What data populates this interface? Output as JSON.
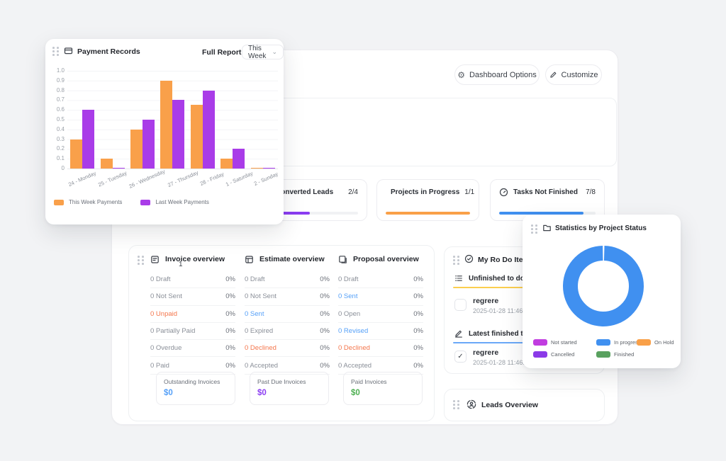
{
  "colors": {
    "orange": "#f9a04a",
    "purple_bar": "#a93ce8",
    "violet": "#8b3df2",
    "blue": "#4090f0",
    "green": "#59a15f",
    "magenta": "#c13de0",
    "red_text": "#f4764c",
    "blue_text": "#55a0f8",
    "yellow_underline": "#fbce4f",
    "blue_underline": "#6aa8f8"
  },
  "payment_card": {
    "title": "Payment Records",
    "full_report_label": "Full Report",
    "range_selector_value": "This Week",
    "legend": [
      {
        "label": "This Week Payments",
        "color": "#f9a04a"
      },
      {
        "label": "Last Week Payments",
        "color": "#a93ce8"
      }
    ]
  },
  "chart_data": [
    {
      "type": "bar",
      "title": "Payment Records",
      "categories": [
        "24 - Monday",
        "25 - Tuesday",
        "26 - Wednesday",
        "27 - Thursday",
        "28 - Friday",
        "1 - Saturday",
        "2 - Sunday"
      ],
      "series": [
        {
          "name": "This Week Payments",
          "color": "#f9a04a",
          "values": [
            0.3,
            0.1,
            0.4,
            0.9,
            0.65,
            0.1,
            0.01
          ]
        },
        {
          "name": "Last Week Payments",
          "color": "#a93ce8",
          "values": [
            0.6,
            0.01,
            0.5,
            0.7,
            0.8,
            0.2,
            0.01
          ]
        }
      ],
      "ylim": [
        0,
        1.0
      ],
      "yticks": [
        0,
        0.1,
        0.2,
        0.3,
        0.4,
        0.5,
        0.6,
        0.7,
        0.8,
        0.9,
        1.0
      ],
      "grid": true,
      "legend_position": "bottom"
    },
    {
      "type": "pie",
      "title": "Statistics by Project Status",
      "labels": [
        "Not started",
        "In progress",
        "On Hold",
        "Cancelled",
        "Finished"
      ],
      "values": [
        0,
        100,
        0,
        0,
        0
      ],
      "colors": [
        "#c13de0",
        "#4090f0",
        "#f9a048",
        "#8b3ae8",
        "#59a15f"
      ],
      "donut": true,
      "legend_position": "bottom"
    }
  ],
  "toolbar": {
    "dashboard_options_label": "Dashboard Options",
    "customize_label": "Customize"
  },
  "stat_cards": [
    {
      "label": "Converted Leads",
      "value": "2/4",
      "progress": "50%",
      "color": "#8b3df2"
    },
    {
      "label": "Projects in Progress",
      "value": "1/1",
      "progress": "100%",
      "color": "#f9a048"
    },
    {
      "label": "Tasks Not Finished",
      "value": "7/8",
      "progress": "87.5%",
      "color": "#4090f0"
    }
  ],
  "overview": {
    "floating_char": "1",
    "columns": [
      {
        "title": "Invoice overview",
        "rows": [
          {
            "label": "0 Draft",
            "value": "0%"
          },
          {
            "label": "0 Not Sent",
            "value": "0%"
          },
          {
            "label": "0 Unpaid",
            "value": "0%",
            "color": "red"
          },
          {
            "label": "0 Partially Paid",
            "value": "0%"
          },
          {
            "label": "0 Overdue",
            "value": "0%"
          },
          {
            "label": "0 Paid",
            "value": "0%"
          }
        ]
      },
      {
        "title": "Estimate overview",
        "rows": [
          {
            "label": "0 Draft",
            "value": "0%"
          },
          {
            "label": "0 Not Sent",
            "value": "0%"
          },
          {
            "label": "0 Sent",
            "value": "0%",
            "color": "blue"
          },
          {
            "label": "0 Expired",
            "value": "0%"
          },
          {
            "label": "0 Declined",
            "value": "0%",
            "color": "red"
          },
          {
            "label": "0 Accepted",
            "value": "0%"
          }
        ]
      },
      {
        "title": "Proposal overview",
        "rows": [
          {
            "label": "0 Draft",
            "value": "0%"
          },
          {
            "label": "0 Sent",
            "value": "0%",
            "color": "blue"
          },
          {
            "label": "0 Open",
            "value": "0%"
          },
          {
            "label": "0 Revised",
            "value": "0%",
            "color": "blue"
          },
          {
            "label": "0 Declined",
            "value": "0%",
            "color": "red"
          },
          {
            "label": "0 Accepted",
            "value": "0%"
          }
        ]
      }
    ],
    "summary": [
      {
        "label": "Outstanding Invoices",
        "value": "$0",
        "color": "#55a0f8"
      },
      {
        "label": "Past Due Invoices",
        "value": "$0",
        "color": "#8b3df2"
      },
      {
        "label": "Paid Invoices",
        "value": "$0",
        "color": "#4caf50"
      }
    ]
  },
  "todo_card": {
    "title": "My Ro Do Items",
    "sections": [
      {
        "label": "Unfinished to do's"
      },
      {
        "label": "Latest finished to do's"
      }
    ],
    "unfinished_item": {
      "title": "regrere",
      "timestamp": "2025-01-28 11:46:19",
      "checked": false
    },
    "finished_item": {
      "title": "regrere",
      "timestamp": "2025-01-28 11:46:19",
      "checked": true,
      "checkmark": "✓"
    }
  },
  "stats_panel": {
    "title": "Statistics by Project Status",
    "donut_color": "#4090f0",
    "legend": [
      {
        "label": "Not started",
        "color": "#c13de0"
      },
      {
        "label": "In progress",
        "color": "#4090f0"
      },
      {
        "label": "On Hold",
        "color": "#f9a048"
      },
      {
        "label": "Cancelled",
        "color": "#8b3ae8"
      },
      {
        "label": "Finished",
        "color": "#59a15f"
      }
    ]
  },
  "leads_card": {
    "title": "Leads Overview"
  },
  "glyphs": {
    "gear": "⚙",
    "chevron_down": "⌄"
  }
}
